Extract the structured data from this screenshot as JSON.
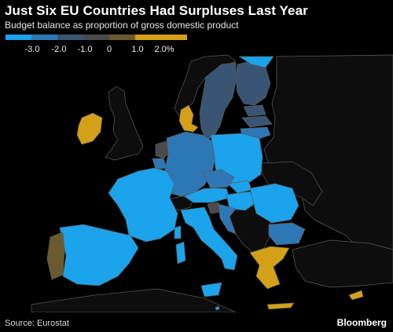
{
  "header": {
    "title": "Just Six EU Countries Had Surpluses Last Year",
    "subtitle": "Budget balance as proportion of gross domestic product"
  },
  "legend": {
    "items": [
      {
        "label": "-3.0",
        "color": "#1ba3ec"
      },
      {
        "label": "-2.0",
        "color": "#2e77b5"
      },
      {
        "label": "-1.0",
        "color": "#3a5573"
      },
      {
        "label": "0",
        "color": "#4a4a4a"
      },
      {
        "label": "1.0",
        "color": "#6a5a30"
      },
      {
        "label": "2.0%",
        "color": "#d4a017"
      }
    ]
  },
  "footer": {
    "source": "Source: Eurostat",
    "brand": "Bloomberg"
  },
  "colors": {
    "background": "#000000",
    "non_eu": "#0d0d0d",
    "border": "#5a5a5a"
  }
}
